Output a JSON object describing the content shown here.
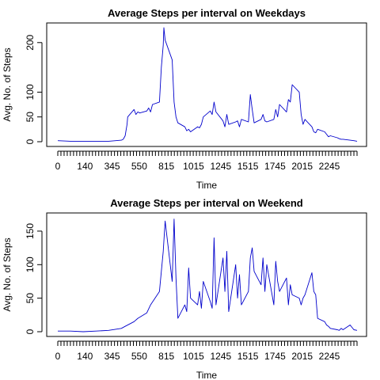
{
  "chart_data": [
    {
      "type": "line",
      "title": "Average Steps per interval on Weekdays",
      "xlabel": "Time",
      "ylabel": "Avg. No. of Steps",
      "xlim": [
        0,
        2355
      ],
      "ylim": [
        0,
        230
      ],
      "xticks": [
        "0",
        "140",
        "345",
        "550",
        "815",
        "1015",
        "1245",
        "1515",
        "1745",
        "2015",
        "2245"
      ],
      "yticks": [
        0,
        50,
        100,
        200
      ],
      "grid": false,
      "legend": "none",
      "color": "#0000cc",
      "series": [
        {
          "x": [
            0,
            100,
            200,
            300,
            400,
            500,
            515,
            530,
            545,
            550,
            600,
            615,
            630,
            645,
            700,
            715,
            730,
            745,
            800,
            815,
            830,
            835,
            845,
            900,
            915,
            930,
            945,
            1000,
            1015,
            1030,
            1045,
            1100,
            1115,
            1130,
            1145,
            1200,
            1215,
            1230,
            1245,
            1300,
            1315,
            1330,
            1345,
            1400,
            1415,
            1430,
            1445,
            1500,
            1515,
            1530,
            1545,
            1600,
            1615,
            1630,
            1645,
            1700,
            1715,
            1730,
            1745,
            1800,
            1815,
            1830,
            1845,
            1900,
            1915,
            1930,
            1945,
            2000,
            2015,
            2030,
            2045,
            2100,
            2115,
            2130,
            2145,
            2200,
            2215,
            2230,
            2245,
            2300,
            2330,
            2355
          ],
          "y": [
            2,
            1,
            1,
            1,
            1,
            3,
            5,
            12,
            35,
            50,
            65,
            55,
            60,
            58,
            62,
            68,
            60,
            75,
            80,
            150,
            195,
            230,
            205,
            165,
            80,
            50,
            38,
            30,
            22,
            25,
            20,
            30,
            28,
            35,
            50,
            62,
            55,
            80,
            60,
            42,
            30,
            55,
            35,
            40,
            42,
            30,
            45,
            40,
            95,
            65,
            38,
            45,
            55,
            42,
            40,
            45,
            65,
            50,
            75,
            60,
            85,
            80,
            115,
            100,
            55,
            35,
            45,
            30,
            20,
            18,
            25,
            20,
            15,
            10,
            12,
            8,
            6,
            5,
            5,
            3,
            2,
            1
          ]
        }
      ]
    },
    {
      "type": "line",
      "title": "Average Steps per interval on Weekend",
      "xlabel": "Time",
      "ylabel": "Avg. No. of Steps",
      "xlim": [
        0,
        2355
      ],
      "ylim": [
        0,
        170
      ],
      "xticks": [
        "0",
        "140",
        "345",
        "550",
        "815",
        "1015",
        "1245",
        "1515",
        "1745",
        "2015",
        "2245"
      ],
      "yticks": [
        0,
        50,
        100,
        150
      ],
      "grid": false,
      "legend": "none",
      "color": "#0000cc",
      "series": [
        {
          "x": [
            0,
            100,
            200,
            300,
            400,
            500,
            530,
            600,
            630,
            700,
            730,
            800,
            815,
            830,
            845,
            900,
            915,
            930,
            945,
            1000,
            1015,
            1030,
            1045,
            1100,
            1115,
            1130,
            1145,
            1200,
            1215,
            1230,
            1245,
            1300,
            1315,
            1330,
            1345,
            1400,
            1415,
            1430,
            1445,
            1500,
            1515,
            1530,
            1545,
            1600,
            1615,
            1630,
            1645,
            1700,
            1715,
            1730,
            1745,
            1800,
            1815,
            1830,
            1845,
            1900,
            1915,
            1930,
            1945,
            2000,
            2015,
            2030,
            2045,
            2100,
            2115,
            2130,
            2145,
            2200,
            2215,
            2230,
            2245,
            2300,
            2330,
            2355
          ],
          "y": [
            1,
            1,
            0,
            1,
            2,
            5,
            8,
            15,
            20,
            28,
            40,
            60,
            90,
            120,
            165,
            75,
            168,
            80,
            20,
            40,
            30,
            95,
            50,
            40,
            60,
            35,
            75,
            45,
            35,
            140,
            40,
            110,
            60,
            120,
            30,
            100,
            50,
            85,
            40,
            60,
            110,
            125,
            90,
            70,
            110,
            60,
            100,
            40,
            105,
            75,
            60,
            80,
            40,
            70,
            55,
            50,
            40,
            50,
            55,
            88,
            60,
            55,
            20,
            15,
            10,
            8,
            5,
            3,
            2,
            5,
            3,
            10,
            3,
            2
          ]
        }
      ]
    }
  ]
}
